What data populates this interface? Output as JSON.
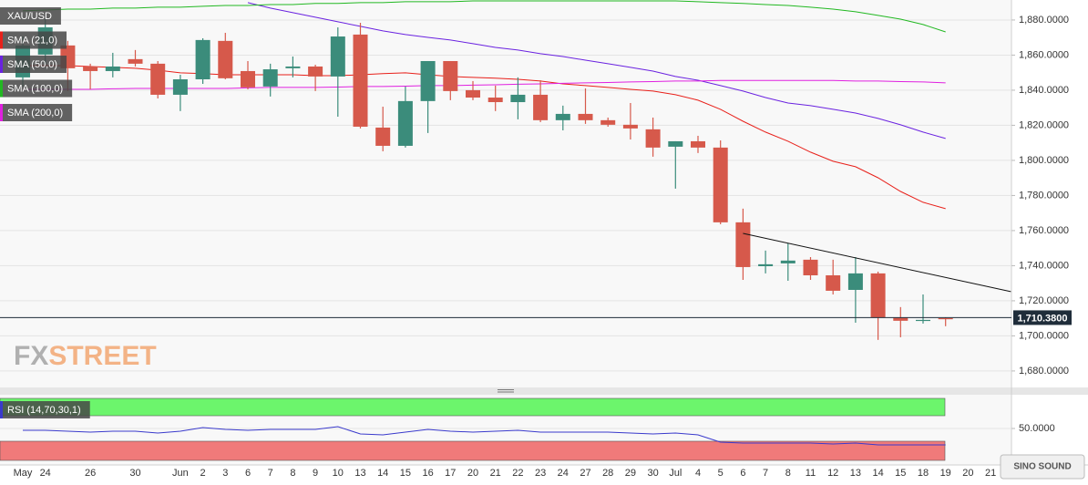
{
  "chart_data": [
    {
      "type": "candlestick",
      "categories": [
        "May",
        "24",
        null,
        "26",
        null,
        "30",
        null,
        "Jun",
        "2",
        "3",
        "6",
        "7",
        "8",
        "9",
        "10",
        "13",
        "14",
        "15",
        "16",
        "17",
        "20",
        "21",
        "22",
        "23",
        "24",
        "27",
        "28",
        "29",
        "30",
        "Jul",
        "4",
        "5",
        "6",
        "7",
        "8",
        "11",
        "12",
        "13",
        "14",
        "15",
        "18",
        "19",
        "20",
        "21"
      ],
      "series": [
        {
          "name": "XAU/USD",
          "up_color": "#3b8c7b",
          "down_color": "#d6594b",
          "open": [
            1847.3,
            1860.3,
            1865.5,
            1853.5,
            1850.9,
            1857.7,
            1855.1,
            1837.4,
            1846.2,
            1868.1,
            1850.9,
            1842.1,
            1852.5,
            1853.5,
            1847.8,
            1871.7,
            1818.7,
            1808.3,
            1833.8,
            1856.6,
            1840.0,
            1835.8,
            1833.2,
            1837.4,
            1822.9,
            1826.5,
            1822.9,
            1820.3,
            1817.7,
            1807.8,
            1810.9,
            1807.3,
            1764.7,
            1739.7,
            1741.3,
            1743.4,
            1734.5,
            1726.2,
            1735.6,
            1710.6,
            1708.6,
            1710.1,
            null,
            null
          ],
          "high": [
            1870.6,
            1881.0,
            1868.1,
            1855.1,
            1861.3,
            1862.9,
            1856.6,
            1848.8,
            1869.6,
            1872.7,
            1856.6,
            1855.1,
            1859.2,
            1854.5,
            1875.8,
            1878.4,
            1830.6,
            1842.1,
            1856.6,
            1856.6,
            1845.2,
            1842.6,
            1847.3,
            1845.7,
            1831.2,
            1841.0,
            1824.4,
            1832.7,
            1824.4,
            1810.9,
            1814.0,
            1811.4,
            1772.5,
            1748.6,
            1752.7,
            1744.9,
            1743.4,
            1744.9,
            1736.6,
            1716.4,
            1723.6,
            1710.6,
            null,
            null
          ],
          "low": [
            1842.1,
            1855.1,
            1839.5,
            1840.5,
            1847.3,
            1853.5,
            1835.3,
            1828.1,
            1843.6,
            1846.2,
            1840.5,
            1836.4,
            1847.3,
            1839.5,
            1824.9,
            1818.2,
            1805.2,
            1807.3,
            1815.6,
            1834.3,
            1834.3,
            1828.1,
            1823.4,
            1821.8,
            1817.1,
            1820.8,
            1819.2,
            1811.9,
            1802.1,
            1783.9,
            1804.2,
            1763.6,
            1731.9,
            1735.6,
            1731.4,
            1731.9,
            1723.6,
            1707.5,
            1697.7,
            1699.2,
            1707.0,
            1705.5,
            null,
            null
          ],
          "close": [
            1865.5,
            1875.8,
            1852.5,
            1850.9,
            1853.5,
            1855.1,
            1837.4,
            1846.2,
            1868.6,
            1846.8,
            1841.6,
            1851.9,
            1853.5,
            1847.8,
            1870.6,
            1819.2,
            1808.3,
            1833.8,
            1856.6,
            1839.5,
            1835.8,
            1833.2,
            1837.4,
            1822.9,
            1826.5,
            1822.9,
            1820.3,
            1818.2,
            1807.3,
            1810.9,
            1807.3,
            1764.7,
            1739.2,
            1740.8,
            1742.9,
            1734.5,
            1725.7,
            1735.6,
            1710.6,
            1708.6,
            1709.1,
            1709.6,
            null,
            null
          ]
        },
        {
          "name": "SMA (21,0)",
          "color": "#e8201a",
          "values": [
            1854.0,
            1854.0,
            1854.0,
            1853.5,
            1853.0,
            1852.5,
            1851.4,
            1849.9,
            1849.4,
            1848.8,
            1848.8,
            1848.8,
            1848.8,
            1848.3,
            1848.3,
            1848.8,
            1849.4,
            1849.9,
            1848.8,
            1847.8,
            1847.3,
            1846.8,
            1846.2,
            1845.2,
            1843.6,
            1842.6,
            1841.6,
            1840.5,
            1839.5,
            1837.4,
            1834.3,
            1829.1,
            1822.3,
            1816.1,
            1810.9,
            1804.7,
            1799.5,
            1796.4,
            1790.1,
            1782.3,
            1776.1,
            1772.5,
            null,
            null
          ]
        },
        {
          "name": "SMA (50,0)",
          "color": "#6a22e0",
          "values": [
            null,
            null,
            null,
            null,
            null,
            null,
            null,
            null,
            null,
            null,
            1889.9,
            1886.8,
            1884.2,
            1881.6,
            1879.0,
            1876.4,
            1873.8,
            1871.7,
            1870.1,
            1868.6,
            1866.5,
            1864.4,
            1862.9,
            1860.8,
            1859.2,
            1857.1,
            1855.1,
            1853.0,
            1850.9,
            1847.8,
            1845.7,
            1842.6,
            1839.5,
            1835.8,
            1832.7,
            1831.2,
            1829.1,
            1827.0,
            1823.9,
            1820.3,
            1816.1,
            1812.5,
            null,
            null
          ]
        },
        {
          "name": "SMA (100,0)",
          "color": "#22b822",
          "values": [
            1885.2,
            1885.7,
            1886.2,
            1886.2,
            1886.8,
            1886.8,
            1887.3,
            1887.3,
            1887.8,
            1888.3,
            1888.3,
            1888.8,
            1888.8,
            1889.4,
            1889.4,
            1889.9,
            1889.9,
            1890.4,
            1890.4,
            1890.4,
            1890.9,
            1890.9,
            1890.9,
            1890.9,
            1890.9,
            1890.9,
            1890.9,
            1890.9,
            1890.9,
            1890.9,
            1890.4,
            1889.9,
            1889.4,
            1888.8,
            1888.3,
            1887.3,
            1886.2,
            1884.7,
            1882.6,
            1880.5,
            1877.4,
            1873.2,
            null,
            null
          ]
        },
        {
          "name": "SMA (200,0)",
          "color": "#e020e0",
          "values": [
            1840.5,
            1840.5,
            1840.5,
            1840.5,
            1840.8,
            1841.0,
            1841.0,
            1841.0,
            1841.0,
            1841.0,
            1841.3,
            1841.6,
            1841.6,
            1841.6,
            1841.8,
            1842.1,
            1842.1,
            1842.3,
            1842.6,
            1842.6,
            1842.9,
            1843.1,
            1843.4,
            1843.6,
            1843.9,
            1844.2,
            1844.4,
            1844.7,
            1844.9,
            1845.2,
            1845.2,
            1845.5,
            1845.5,
            1845.5,
            1845.5,
            1845.5,
            1845.5,
            1845.2,
            1845.2,
            1844.9,
            1844.7,
            1844.2,
            null,
            null
          ]
        }
      ],
      "trendline": {
        "x": [
          32,
          43.9
        ],
        "values": [
          1758.4,
          1725.2
        ],
        "color": "#111111"
      },
      "price_line": {
        "value": 1710.38,
        "label": "1,710.3800",
        "color": "#1f2d3a"
      },
      "ylim": [
        1670.6,
        1891.4
      ],
      "yticks": [
        {
          "value": 1680,
          "label": "1,680.0000"
        },
        {
          "value": 1700,
          "label": "1,700.0000"
        },
        {
          "value": 1720,
          "label": "1,720.0000"
        },
        {
          "value": 1740,
          "label": "1,740.0000"
        },
        {
          "value": 1760,
          "label": "1,760.0000"
        },
        {
          "value": 1780,
          "label": "1,780.0000"
        },
        {
          "value": 1800,
          "label": "1,800.0000"
        },
        {
          "value": 1820,
          "label": "1,820.0000"
        },
        {
          "value": 1840,
          "label": "1,840.0000"
        },
        {
          "value": 1860,
          "label": "1,860.0000"
        },
        {
          "value": 1880,
          "label": "1,880.0000"
        }
      ],
      "grid": true,
      "watermark": [
        "FX",
        "STREET"
      ],
      "logo": "SINO SOUND"
    },
    {
      "type": "line",
      "series": [
        {
          "name": "RSI (14,70,30,1)",
          "color": "#3a3acc",
          "values": [
            47.1,
            47.1,
            45.7,
            44.3,
            45.7,
            45.7,
            42.9,
            45.7,
            51.4,
            48.6,
            47.1,
            48.6,
            48.6,
            48.6,
            52.9,
            41.4,
            40.0,
            44.3,
            48.6,
            45.7,
            44.3,
            45.7,
            47.1,
            44.3,
            44.3,
            44.3,
            44.3,
            42.9,
            41.4,
            42.9,
            40.0,
            28.6,
            27.1,
            27.1,
            27.1,
            27.1,
            25.7,
            27.1,
            24.3,
            24.3,
            24.3,
            24.3,
            null,
            null
          ]
        }
      ],
      "bands": {
        "upper": 70,
        "lower": 30,
        "upper_color": "#6cf56c",
        "lower_color": "#f07a7a"
      },
      "ylim": [
        0,
        100
      ],
      "yticks": [
        {
          "value": 50,
          "label": "50.0000"
        }
      ],
      "grid": true
    }
  ]
}
